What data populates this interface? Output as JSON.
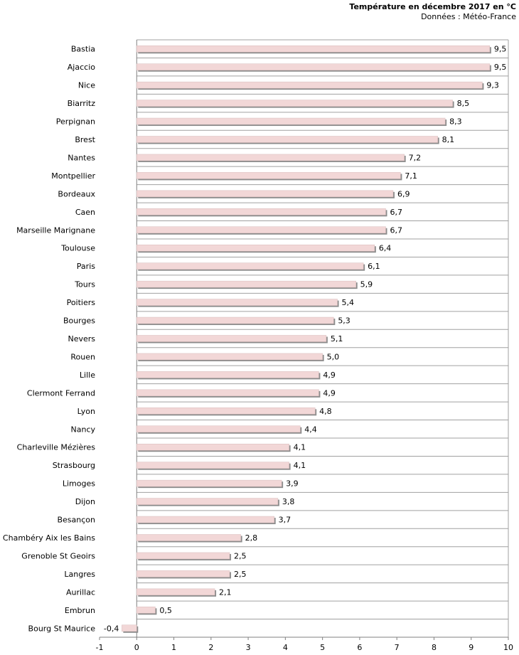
{
  "chart_data": {
    "type": "bar",
    "orientation": "horizontal",
    "title": "Température en décembre 2017 en °C",
    "subtitle": "Données : Météo-France",
    "categories": [
      "Bastia",
      "Ajaccio",
      "Nice",
      "Biarritz",
      "Perpignan",
      "Brest",
      "Nantes",
      "Montpellier",
      "Bordeaux",
      "Caen",
      "Marseille Marignane",
      "Toulouse",
      "Paris",
      "Tours",
      "Poitiers",
      "Bourges",
      "Nevers",
      "Rouen",
      "Lille",
      "Clermont Ferrand",
      "Lyon",
      "Nancy",
      "Charleville Mézières",
      "Strasbourg",
      "Limoges",
      "Dijon",
      "Besançon",
      "Chambéry Aix les Bains",
      "Grenoble St Geoirs",
      "Langres",
      "Aurillac",
      "Embrun",
      "Bourg St Maurice"
    ],
    "values": [
      9.5,
      9.5,
      9.3,
      8.5,
      8.3,
      8.1,
      7.2,
      7.1,
      6.9,
      6.7,
      6.7,
      6.4,
      6.1,
      5.9,
      5.4,
      5.3,
      5.1,
      5.0,
      4.9,
      4.9,
      4.8,
      4.4,
      4.1,
      4.1,
      3.9,
      3.8,
      3.7,
      2.8,
      2.5,
      2.5,
      2.1,
      0.5,
      -0.4
    ],
    "value_labels": [
      "9,5",
      "9,5",
      "9,3",
      "8,5",
      "8,3",
      "8,1",
      "7,2",
      "7,1",
      "6,9",
      "6,7",
      "6,7",
      "6,4",
      "6,1",
      "5,9",
      "5,4",
      "5,3",
      "5,1",
      "5,0",
      "4,9",
      "4,9",
      "4,8",
      "4,4",
      "4,1",
      "4,1",
      "3,9",
      "3,8",
      "3,7",
      "2,8",
      "2,5",
      "2,5",
      "2,1",
      "0,5",
      "-0,4"
    ],
    "xlim": [
      -1,
      10
    ],
    "xticks": [
      -1,
      0,
      1,
      2,
      3,
      4,
      5,
      6,
      7,
      8,
      9,
      10
    ],
    "grid": "horizontal-lines",
    "legend": "none",
    "colors": {
      "bar_fill": "#f2d7d7",
      "bar_shadow": "#8c8c8c",
      "grid": "#a0a0a0",
      "axis": "#808080"
    }
  }
}
